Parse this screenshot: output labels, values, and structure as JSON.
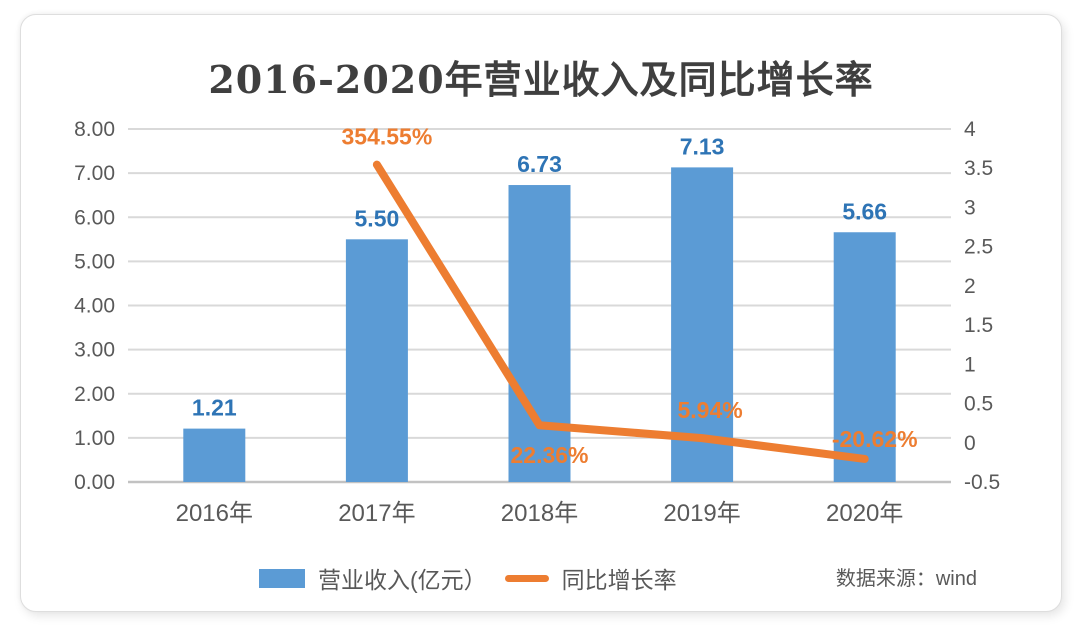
{
  "chart_data": {
    "type": "bar",
    "subtype": "bar+line combo, dual axis",
    "title": "2016-2020年营业收入及同比增长率",
    "categories": [
      "2016年",
      "2017年",
      "2018年",
      "2019年",
      "2020年"
    ],
    "series": [
      {
        "name": "营业收入(亿元）",
        "type": "bar",
        "axis": "left",
        "values": [
          1.21,
          5.5,
          6.73,
          7.13,
          5.66
        ],
        "labels": [
          "1.21",
          "5.50",
          "6.73",
          "7.13",
          "5.66"
        ],
        "color": "#5B9BD5",
        "label_color": "#2E74B5"
      },
      {
        "name": "同比增长率",
        "type": "line",
        "axis": "right",
        "values_percent": [
          null,
          354.55,
          22.36,
          5.94,
          -20.62
        ],
        "labels": [
          null,
          "354.55%",
          "22.36%",
          "5.94%",
          "-20.62%"
        ],
        "color": "#ED7D31"
      }
    ],
    "left_axis": {
      "min": 0,
      "max": 8,
      "ticks": [
        "0.00",
        "1.00",
        "2.00",
        "3.00",
        "4.00",
        "5.00",
        "6.00",
        "7.00",
        "8.00"
      ]
    },
    "right_axis": {
      "min": -50,
      "max": 400,
      "ticks": [
        "-0.5",
        "0",
        "0.5",
        "1",
        "1.5",
        "2",
        "2.5",
        "3",
        "3.5",
        "4"
      ]
    },
    "grid": true,
    "legend_position": "bottom",
    "source_note": "数据来源：wind",
    "colors": {
      "bar": "#5B9BD5",
      "bar_label": "#2E74B5",
      "line": "#ED7D31",
      "grid": "#d9d9d9",
      "axis_text": "#595959",
      "title_text": "#3f3f3f"
    }
  }
}
